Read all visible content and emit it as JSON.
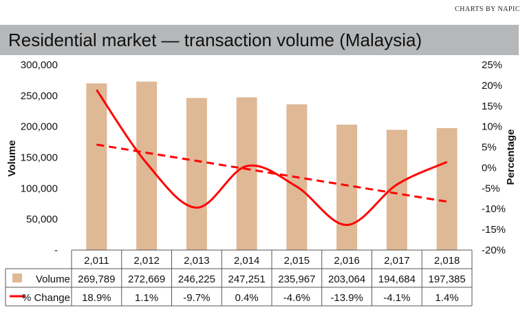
{
  "credit": "CHARTS BY NAPIC",
  "chart_data": {
    "type": "bar",
    "title": "Residential market — transaction volume (Malaysia)",
    "categories": [
      "2,011",
      "2,012",
      "2,013",
      "2,014",
      "2,015",
      "2,016",
      "2,017",
      "2,018"
    ],
    "series": [
      {
        "name": "Volume",
        "type": "bar",
        "axis": "left",
        "color": "#dfb896",
        "values": [
          269789,
          272669,
          246225,
          247251,
          235967,
          203064,
          194684,
          197385
        ],
        "labels": [
          "269,789",
          "272,669",
          "246,225",
          "247,251",
          "235,967",
          "203,064",
          "194,684",
          "197,385"
        ]
      },
      {
        "name": "% Change",
        "type": "line",
        "axis": "right",
        "color": "#ff0000",
        "values": [
          18.9,
          1.1,
          -9.7,
          0.4,
          -4.6,
          -13.9,
          -4.1,
          1.4
        ],
        "labels": [
          "18.9%",
          "1.1%",
          "-9.7%",
          "0.4%",
          "-4.6%",
          "-13.9%",
          "-4.1%",
          "1.4%"
        ]
      }
    ],
    "trendline": {
      "series": "% Change",
      "style": "dashed",
      "color": "#ff0000"
    },
    "ylabel": "Volume",
    "ylim": [
      0,
      300000
    ],
    "yticks": [
      "-",
      "50,000",
      "100,000",
      "150,000",
      "200,000",
      "250,000",
      "300,000"
    ],
    "y2label": "Percentage",
    "y2lim": [
      -20,
      25
    ],
    "y2ticks": [
      "-20%",
      "-15%",
      "-10%",
      "-5%",
      "0%",
      "5%",
      "10%",
      "15%",
      "20%",
      "25%"
    ],
    "grid": false,
    "legend": "data-table"
  }
}
